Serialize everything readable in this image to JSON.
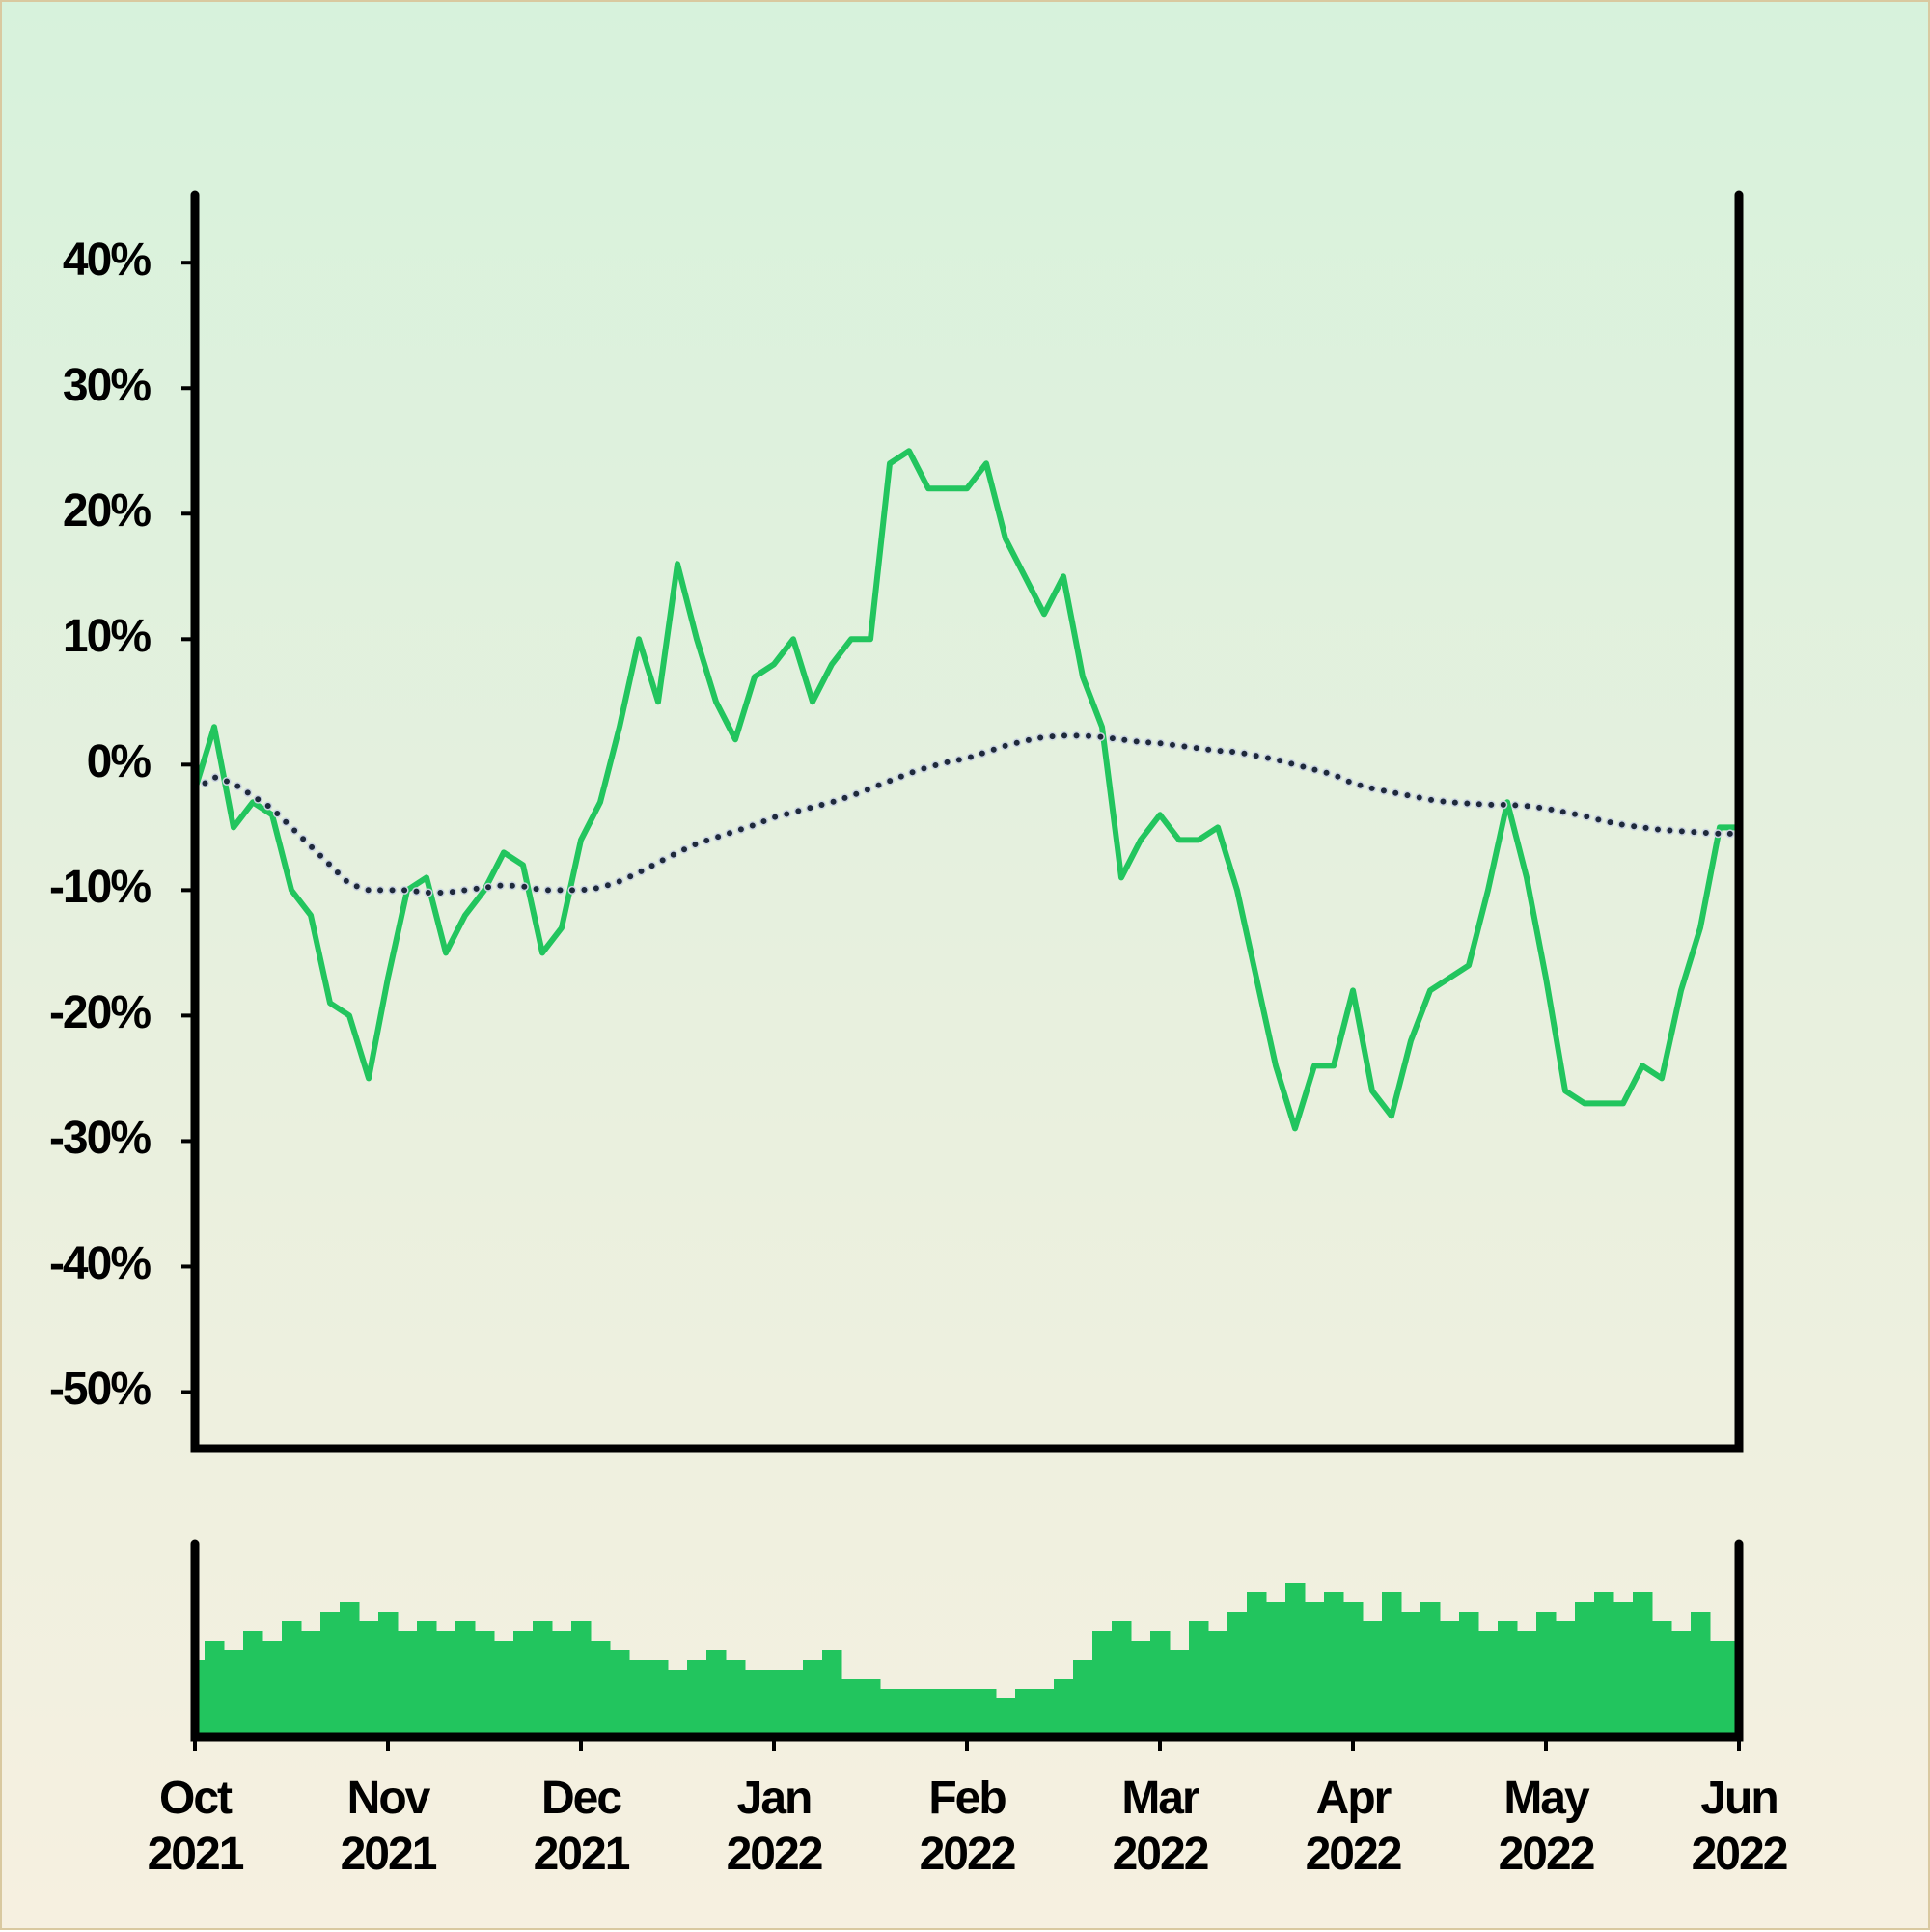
{
  "chart_data": [
    {
      "type": "line",
      "ylim": [
        -54.5,
        45.4
      ],
      "yticks": [
        {
          "value": 40,
          "label": "40%"
        },
        {
          "value": 30,
          "label": "30%"
        },
        {
          "value": 20,
          "label": "20%"
        },
        {
          "value": 10,
          "label": "10%"
        },
        {
          "value": 0,
          "label": "0%"
        },
        {
          "value": -10,
          "label": "-10%"
        },
        {
          "value": -20,
          "label": "-20%"
        },
        {
          "value": -30,
          "label": "-30%"
        },
        {
          "value": -40,
          "label": "-40%"
        },
        {
          "value": -50,
          "label": "-50%"
        }
      ],
      "series": [
        {
          "color": "#22c55e",
          "dash": "solid",
          "values": [
            -2,
            3,
            -5,
            -3,
            -4,
            -10,
            -12,
            -19,
            -20,
            -25,
            -17,
            -10,
            -9,
            -15,
            -12,
            -10,
            -7,
            -8,
            -15,
            -13,
            -6,
            -3,
            3,
            10,
            5,
            16,
            10,
            5,
            2,
            7,
            8,
            10,
            5,
            8,
            10,
            10,
            24,
            25,
            22,
            22,
            22,
            24,
            18,
            15,
            12,
            15,
            7,
            3,
            -9,
            -6,
            -4,
            -6,
            -6,
            -5,
            -10,
            -17,
            -24,
            -29,
            -24,
            -24,
            -18,
            -26,
            -28,
            -22,
            -18,
            -17,
            -16,
            -10,
            -3,
            -9,
            -17,
            -26,
            -27,
            -27,
            -27,
            -24,
            -25,
            -18,
            -13,
            -5,
            -5
          ]
        },
        {
          "color": "#1e293b",
          "dash": "dotted",
          "values": [
            -2,
            -1,
            -1.5,
            -2.5,
            -3.5,
            -5,
            -6.5,
            -8,
            -9.5,
            -10,
            -10,
            -10,
            -10.2,
            -10.2,
            -10,
            -9.8,
            -9.6,
            -9.7,
            -10,
            -10,
            -10,
            -9.8,
            -9.3,
            -8.6,
            -7.8,
            -7,
            -6.3,
            -5.8,
            -5.3,
            -4.8,
            -4.2,
            -3.8,
            -3.4,
            -3,
            -2.5,
            -1.9,
            -1.3,
            -0.7,
            -0.2,
            0.2,
            0.5,
            1,
            1.5,
            1.9,
            2.2,
            2.3,
            2.3,
            2.2,
            2,
            1.8,
            1.7,
            1.5,
            1.3,
            1.1,
            1,
            0.7,
            0.4,
            0,
            -0.4,
            -0.8,
            -1.5,
            -1.9,
            -2.2,
            -2.5,
            -2.8,
            -3,
            -3.1,
            -3.2,
            -3.2,
            -3.3,
            -3.5,
            -3.8,
            -4.1,
            -4.5,
            -4.8,
            -5,
            -5.2,
            -5.3,
            -5.4,
            -5.5,
            -5.5
          ]
        }
      ]
    },
    {
      "type": "bar",
      "color": "#22c55e",
      "ylim": [
        0,
        100
      ],
      "categories": [
        "Oct 2021",
        null,
        null,
        null,
        null,
        null,
        null,
        null,
        null,
        null,
        "Nov 2021",
        null,
        null,
        null,
        null,
        null,
        null,
        null,
        null,
        null,
        "Dec 2021",
        null,
        null,
        null,
        null,
        null,
        null,
        null,
        null,
        null,
        "Jan 2022",
        null,
        null,
        null,
        null,
        null,
        null,
        null,
        null,
        null,
        "Feb 2022",
        null,
        null,
        null,
        null,
        null,
        null,
        null,
        null,
        null,
        "Mar 2022",
        null,
        null,
        null,
        null,
        null,
        null,
        null,
        null,
        null,
        "Apr 2022",
        null,
        null,
        null,
        null,
        null,
        null,
        null,
        null,
        null,
        "May 2022",
        null,
        null,
        null,
        null,
        null,
        null,
        null,
        null,
        null,
        "Jun 2022"
      ],
      "values": [
        40,
        50,
        45,
        55,
        50,
        60,
        55,
        65,
        70,
        60,
        65,
        55,
        60,
        55,
        60,
        55,
        50,
        55,
        60,
        55,
        60,
        50,
        45,
        40,
        40,
        35,
        40,
        45,
        40,
        35,
        35,
        35,
        40,
        45,
        30,
        30,
        25,
        25,
        25,
        25,
        25,
        25,
        20,
        25,
        25,
        30,
        40,
        55,
        60,
        50,
        55,
        45,
        60,
        55,
        65,
        75,
        70,
        80,
        70,
        75,
        70,
        60,
        75,
        65,
        70,
        60,
        65,
        55,
        60,
        55,
        65,
        60,
        70,
        75,
        70,
        75,
        60,
        55,
        65,
        50,
        50
      ]
    }
  ]
}
